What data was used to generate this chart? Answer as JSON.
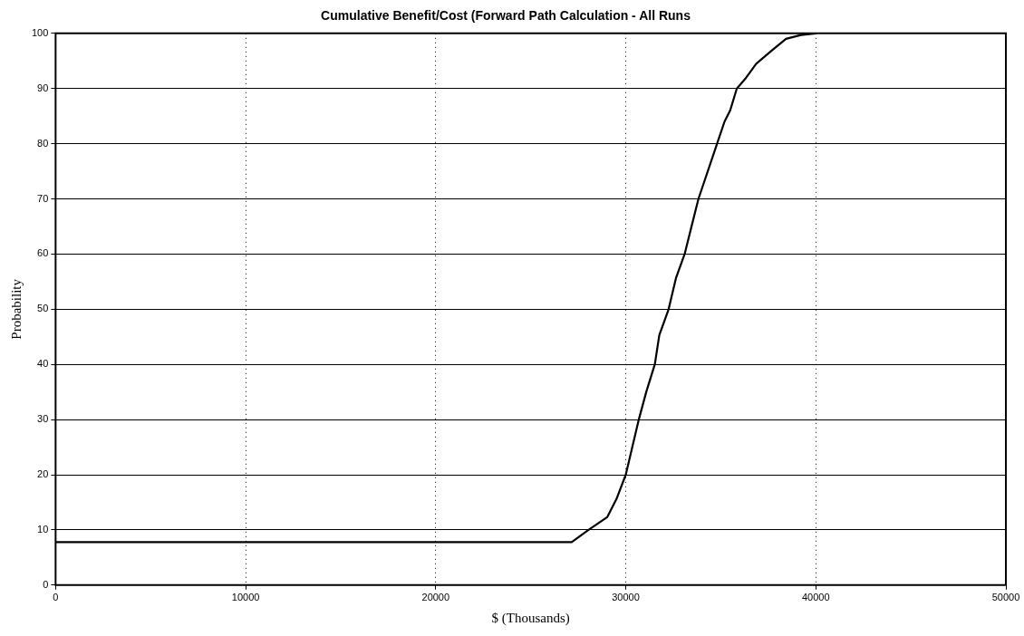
{
  "chart_data": {
    "type": "line",
    "title": "Cumulative Benefit/Cost (Forward Path Calculation - All Runs",
    "xlabel": "$ (Thousands)",
    "ylabel": "Probability",
    "x": [
      0,
      10000,
      20000,
      27157,
      28039,
      29020,
      29510,
      30000,
      30686,
      31078,
      31529,
      31765,
      32255,
      32647,
      33098,
      33431,
      33824,
      34118,
      34804,
      35196,
      35490,
      35843,
      36275,
      36863,
      37647,
      38431,
      39216,
      40000
    ],
    "series": [
      {
        "color": "#000000",
        "values": [
          7.8,
          7.8,
          7.8,
          7.8,
          10,
          12.3,
          15.6,
          20,
          30,
          35,
          40,
          45.3,
          50,
          55.7,
          60,
          64.6,
          70,
          73,
          80,
          84,
          86,
          90,
          91.7,
          94.5,
          96.8,
          99,
          99.7,
          100
        ]
      }
    ],
    "xlim": [
      0,
      50000
    ],
    "xticks": [
      0,
      10000,
      20000,
      30000,
      40000,
      50000
    ],
    "ylim": [
      0,
      100
    ],
    "yticks": [
      0,
      10,
      20,
      30,
      40,
      50,
      60,
      70,
      80,
      90,
      100
    ],
    "grid": true,
    "legend": false,
    "marker": "none",
    "line_style": "solid"
  }
}
